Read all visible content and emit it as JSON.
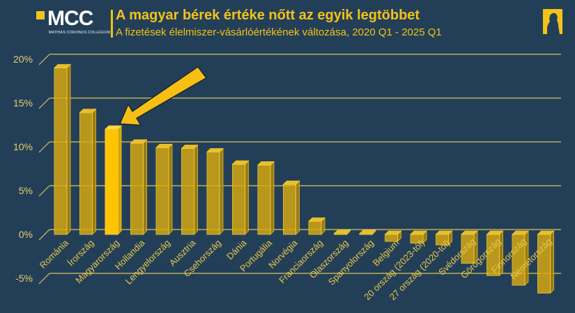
{
  "header": {
    "logo_text": "MCC",
    "logo_subtext": "MATHIAS CORVINUS COLLEGIUM",
    "title": "A magyar bérek értéke nőtt az egyik legtöbbet",
    "subtitle": "A fizetések élelmiszer-vásárlóértékének változása, 2020 Q1 - 2025 Q1"
  },
  "colors": {
    "background": "#233f58",
    "bar": "#d9ab10",
    "highlight": "#ffc400",
    "text": "#f2c318",
    "arrow": "#f5bf14"
  },
  "chart_data": {
    "type": "bar",
    "style": "3d",
    "title": "A magyar bérek értéke nőtt az egyik legtöbbet",
    "subtitle": "A fizetések élelmiszer-vásárlóértékének változása, 2020 Q1 - 2025 Q1",
    "categories": [
      "Románia",
      "Írország",
      "Magyarország",
      "Hollandia",
      "Lengyelország",
      "Ausztria",
      "Csehország",
      "Dánia",
      "Portugália",
      "Norvégia",
      "Franciaország",
      "Olaszország",
      "Spanyolország",
      "Belgium",
      "20 ország (2023-tól)",
      "27 ország (2020-tól)",
      "Svédország",
      "Görögország",
      "Finnország",
      "Németország"
    ],
    "values": [
      19.0,
      13.9,
      12.0,
      10.4,
      9.9,
      9.8,
      9.4,
      8.0,
      7.9,
      5.7,
      1.5,
      0.1,
      0.1,
      -0.8,
      -1.0,
      -1.2,
      -3.3,
      -4.7,
      -5.8,
      -6.7
    ],
    "highlight": "Magyarország",
    "ylim": [
      -5,
      20
    ],
    "yticks": [
      "-5%",
      "0%",
      "5%",
      "10%",
      "15%",
      "20%"
    ],
    "ytick_values": [
      -5,
      0,
      5,
      10,
      15,
      20
    ],
    "grid": true,
    "legend": "none",
    "annotation": "arrow pointing to Magyarország"
  }
}
